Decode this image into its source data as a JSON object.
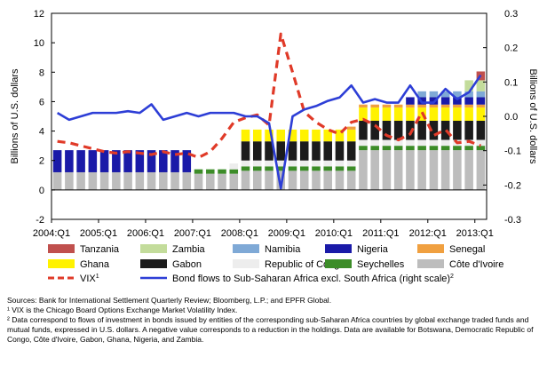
{
  "chart_data": {
    "type": "bar",
    "subtype": "stacked-bar-with-lines",
    "ylabel": "Billions of U.S. dollars",
    "y2label": "Billions of U.S. dollars",
    "ylim": [
      -2,
      12
    ],
    "yticks": [
      -2,
      0,
      2,
      4,
      6,
      8,
      10,
      12
    ],
    "y2lim": [
      -0.3,
      0.3
    ],
    "y2ticks": [
      "-0.3",
      "-0.2",
      "-0.1",
      "0.0",
      "0.1",
      "0.2",
      "0.3"
    ],
    "y2tick_values": [
      -0.3,
      -0.2,
      -0.1,
      0.0,
      0.1,
      0.2,
      0.3
    ],
    "x_labels": [
      "2004:Q1",
      "2005:Q1",
      "2006:Q1",
      "2007:Q1",
      "2008:Q1",
      "2009:Q1",
      "2010:Q1",
      "2011:Q1",
      "2012:Q1",
      "2013:Q1"
    ],
    "grid": false,
    "legend_position": "bottom",
    "categories": [
      "2004:Q1",
      "2004:Q2",
      "2004:Q3",
      "2004:Q4",
      "2005:Q1",
      "2005:Q2",
      "2005:Q3",
      "2005:Q4",
      "2006:Q1",
      "2006:Q2",
      "2006:Q3",
      "2006:Q4",
      "2007:Q1",
      "2007:Q2",
      "2007:Q3",
      "2007:Q4",
      "2008:Q1",
      "2008:Q2",
      "2008:Q3",
      "2008:Q4",
      "2009:Q1",
      "2009:Q2",
      "2009:Q3",
      "2009:Q4",
      "2010:Q1",
      "2010:Q2",
      "2010:Q3",
      "2010:Q4",
      "2011:Q1",
      "2011:Q2",
      "2011:Q3",
      "2011:Q4",
      "2012:Q1",
      "2012:Q2",
      "2012:Q3",
      "2012:Q4",
      "2013:Q1"
    ],
    "series": [
      {
        "name": "Côte d'Ivoire",
        "kind": "bar",
        "color": "#bdbdbd",
        "values": [
          1.2,
          1.2,
          1.2,
          1.2,
          1.2,
          1.2,
          1.2,
          1.2,
          1.2,
          1.2,
          1.2,
          1.2,
          1.1,
          1.1,
          1.1,
          1.1,
          1.3,
          1.3,
          1.3,
          1.3,
          1.3,
          1.3,
          1.3,
          1.3,
          1.3,
          1.3,
          2.7,
          2.7,
          2.7,
          2.7,
          2.7,
          2.7,
          2.7,
          2.7,
          2.7,
          2.7,
          2.7
        ]
      },
      {
        "name": "Seychelles",
        "kind": "bar",
        "color": "#3c8c28",
        "values": [
          0,
          0,
          0,
          0,
          0,
          0,
          0,
          0,
          0,
          0,
          0,
          0,
          0.3,
          0.3,
          0.3,
          0.3,
          0.3,
          0.3,
          0.3,
          0.3,
          0.3,
          0.3,
          0.3,
          0.3,
          0.3,
          0.3,
          0.3,
          0.3,
          0.3,
          0.3,
          0.3,
          0.3,
          0.3,
          0.3,
          0.3,
          0.3,
          0.3
        ]
      },
      {
        "name": "Republic of Congo",
        "kind": "bar",
        "color": "#ededed",
        "values": [
          0,
          0,
          0,
          0,
          0,
          0,
          0,
          0,
          0,
          0,
          0,
          0,
          0,
          0,
          0,
          0.4,
          0.4,
          0.4,
          0.4,
          0.4,
          0.4,
          0.4,
          0.4,
          0.4,
          0.4,
          0.4,
          0.4,
          0.4,
          0.4,
          0.4,
          0.4,
          0.4,
          0.4,
          0.4,
          0.4,
          0.4,
          0.4
        ]
      },
      {
        "name": "Gabon",
        "kind": "bar",
        "color": "#1c1c1c",
        "values": [
          0,
          0,
          0,
          0,
          0,
          0,
          0,
          0,
          0,
          0,
          0,
          0,
          0,
          0,
          0,
          0,
          1.3,
          1.3,
          1.3,
          1.3,
          1.3,
          1.3,
          1.3,
          1.3,
          1.3,
          1.3,
          1.3,
          1.3,
          1.3,
          1.3,
          1.3,
          1.3,
          1.3,
          1.3,
          1.3,
          1.3,
          1.3
        ]
      },
      {
        "name": "Ghana",
        "kind": "bar",
        "color": "#fff200",
        "values": [
          0,
          0,
          0,
          0,
          0,
          0,
          0,
          0,
          0,
          0,
          0,
          0,
          0,
          0,
          0,
          0,
          0.8,
          0.8,
          0.8,
          0.8,
          0.8,
          0.8,
          0.8,
          0.8,
          0.8,
          0.8,
          0.9,
          0.9,
          0.9,
          0.9,
          0.9,
          0.9,
          0.9,
          0.9,
          0.9,
          0.9,
          0.9
        ]
      },
      {
        "name": "Senegal",
        "kind": "bar",
        "color": "#f0a040",
        "values": [
          0,
          0,
          0,
          0,
          0,
          0,
          0,
          0,
          0,
          0,
          0,
          0,
          0,
          0,
          0,
          0,
          0,
          0,
          0,
          0,
          0,
          0,
          0,
          0,
          0,
          0.2,
          0.2,
          0.2,
          0.2,
          0.2,
          0.2,
          0.2,
          0.2,
          0.2,
          0.2,
          0.2,
          0.2
        ]
      },
      {
        "name": "Nigeria",
        "kind": "bar",
        "color": "#1a1aa8",
        "values": [
          1.5,
          1.5,
          1.5,
          1.5,
          1.5,
          1.5,
          1.5,
          1.5,
          1.5,
          1.5,
          1.5,
          1.5,
          0,
          0,
          0,
          0,
          0,
          0,
          0,
          0,
          0,
          0,
          0,
          0,
          0,
          0,
          0,
          0,
          0,
          0,
          0.5,
          0.5,
          0.5,
          0.5,
          0.5,
          0.5,
          0.5
        ]
      },
      {
        "name": "Namibia",
        "kind": "bar",
        "color": "#7fa9d6",
        "values": [
          0,
          0,
          0,
          0,
          0,
          0,
          0,
          0,
          0,
          0,
          0,
          0,
          0,
          0,
          0,
          0,
          0,
          0,
          0,
          0,
          0,
          0,
          0,
          0,
          0,
          0,
          0,
          0,
          0,
          0,
          0,
          0.4,
          0.4,
          0.4,
          0.4,
          0.4,
          0.4
        ]
      },
      {
        "name": "Zambia",
        "kind": "bar",
        "color": "#c3dc9b",
        "values": [
          0,
          0,
          0,
          0,
          0,
          0,
          0,
          0,
          0,
          0,
          0,
          0,
          0,
          0,
          0,
          0,
          0,
          0,
          0,
          0,
          0,
          0,
          0,
          0,
          0,
          0,
          0,
          0,
          0,
          0,
          0,
          0,
          0,
          0,
          0,
          0.75,
          0.75
        ]
      },
      {
        "name": "Tanzania",
        "kind": "bar",
        "color": "#c0504d",
        "values": [
          0,
          0,
          0,
          0,
          0,
          0,
          0,
          0,
          0,
          0,
          0,
          0,
          0,
          0,
          0,
          0,
          0,
          0,
          0,
          0,
          0,
          0,
          0,
          0,
          0,
          0,
          0,
          0,
          0,
          0,
          0,
          0,
          0,
          0,
          0,
          0,
          0.6
        ]
      },
      {
        "name": "VIX",
        "superscript": "1",
        "kind": "line",
        "axis": "left",
        "color": "#e03a28",
        "dash": true,
        "values": [
          3.3,
          3.2,
          3.0,
          2.8,
          2.6,
          2.5,
          2.6,
          2.5,
          2.4,
          2.6,
          2.4,
          2.5,
          2.2,
          2.6,
          3.5,
          4.6,
          4.9,
          5.1,
          4.4,
          10.6,
          8.0,
          5.3,
          4.6,
          4.1,
          3.8,
          4.6,
          4.8,
          4.4,
          3.7,
          3.4,
          3.8,
          5.3,
          3.7,
          4.1,
          3.2,
          3.3,
          3.0
        ]
      },
      {
        "name": "Bond flows to Sub-Saharan Africa excl. South Africa (right scale)",
        "superscript": "2",
        "kind": "line",
        "axis": "right",
        "color": "#2d3ed6",
        "dash": false,
        "values": [
          0.01,
          -0.01,
          0.0,
          0.01,
          0.01,
          0.01,
          0.015,
          0.01,
          0.035,
          -0.01,
          0.0,
          0.01,
          0.0,
          0.01,
          0.01,
          0.01,
          0.0,
          0.0,
          -0.02,
          -0.21,
          0.0,
          0.02,
          0.03,
          0.045,
          0.055,
          0.09,
          0.04,
          0.05,
          0.04,
          0.04,
          0.09,
          0.04,
          0.04,
          0.08,
          0.05,
          0.07,
          0.12
        ]
      }
    ],
    "legend_rows": [
      [
        "Tanzania",
        "Zambia",
        "Namibia",
        "Nigeria",
        "Senegal"
      ],
      [
        "Ghana",
        "Gabon",
        "Republic of Congo",
        "Seychelles",
        "Côte d'Ivoire"
      ],
      [
        "VIX",
        "Bond flows to Sub-Saharan Africa excl. South Africa (right scale)"
      ]
    ]
  },
  "notes": {
    "sources": "Sources: Bank for International Settlement Quarterly Review; Bloomberg, L.P.; and EPFR Global.",
    "note1": "¹ VIX is the Chicago Board Options Exchange Market Volatility Index.",
    "note2": "² Data correspond to flows of investment in bonds issued by entities of the corresponding sub-Saharan Africa countries by global exchange traded funds and mutual funds, expressed in U.S. dollars. A negative value corresponds to a reduction in the holdings. Data are available for Botswana, Democratic Republic of Congo, Côte d'Ivoire, Gabon, Ghana, Nigeria, and Zambia."
  }
}
